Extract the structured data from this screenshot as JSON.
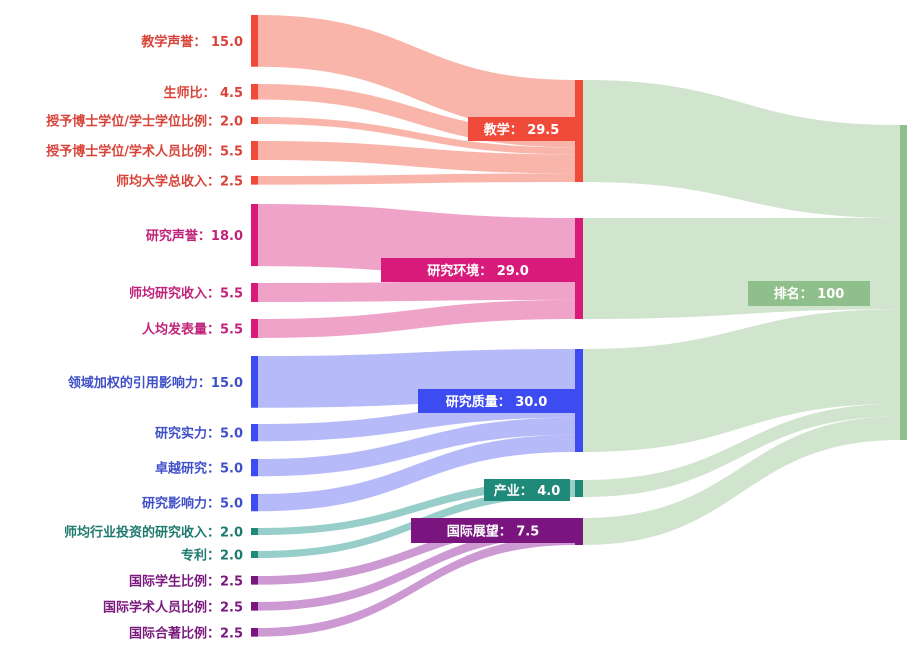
{
  "chart_data": {
    "type": "sankey",
    "colors": {
      "教学": {
        "node": "#f04a3a",
        "flow": "#f8a89a",
        "text": "#d8443a"
      },
      "研究环境": {
        "node": "#d81b7a",
        "flow": "#ec93c0",
        "text": "#c0237a"
      },
      "研究质量": {
        "node": "#3d4cf0",
        "flow": "#a9aef8",
        "text": "#3f4fc8"
      },
      "产业": {
        "node": "#1f8a7a",
        "flow": "#86c6bf",
        "text": "#1f7a6e"
      },
      "国际展望": {
        "node": "#7a1580",
        "flow": "#c487cb",
        "text": "#7a1a7e"
      },
      "排名": {
        "node": "#8fbf8a",
        "flow": "#c9dfc5",
        "text": "#ffffff"
      }
    },
    "sources": [
      {
        "name": "教学声誉",
        "value": 15.0,
        "label": "教学声誉： 15.0",
        "target": "教学"
      },
      {
        "name": "生师比",
        "value": 4.5,
        "label": "生师比： 4.5",
        "target": "教学"
      },
      {
        "name": "授予博士学位/学士学位比例",
        "value": 2.0,
        "label": "授予博士学位/学士学位比例：2.0",
        "target": "教学"
      },
      {
        "name": "授予博士学位/学术人员比例",
        "value": 5.5,
        "label": "授予博士学位/学术人员比例：5.5",
        "target": "教学"
      },
      {
        "name": "师均大学总收入",
        "value": 2.5,
        "label": "师均大学总收入：2.5",
        "target": "教学"
      },
      {
        "name": "研究声誉",
        "value": 18.0,
        "label": "研究声誉：18.0",
        "target": "研究环境"
      },
      {
        "name": "师均研究收入",
        "value": 5.5,
        "label": "师均研究收入：5.5",
        "target": "研究环境"
      },
      {
        "name": "人均发表量",
        "value": 5.5,
        "label": "人均发表量：5.5",
        "target": "研究环境"
      },
      {
        "name": "领域加权的引用影响力",
        "value": 15.0,
        "label": "领域加权的引用影响力：15.0",
        "target": "研究质量"
      },
      {
        "name": "研究实力",
        "value": 5.0,
        "label": "研究实力：5.0",
        "target": "研究质量"
      },
      {
        "name": "卓越研究",
        "value": 5.0,
        "label": "卓越研究：5.0",
        "target": "研究质量"
      },
      {
        "name": "研究影响力",
        "value": 5.0,
        "label": "研究影响力：5.0",
        "target": "研究质量"
      },
      {
        "name": "师均行业投资的研究收入",
        "value": 2.0,
        "label": "师均行业投资的研究收入：2.0",
        "target": "产业"
      },
      {
        "name": "专利",
        "value": 2.0,
        "label": "专利：2.0",
        "target": "产业"
      },
      {
        "name": "国际学生比例",
        "value": 2.5,
        "label": "国际学生比例：2.5",
        "target": "国际展望"
      },
      {
        "name": "国际学术人员比例",
        "value": 2.5,
        "label": "国际学术人员比例：2.5",
        "target": "国际展望"
      },
      {
        "name": "国际合著比例",
        "value": 2.5,
        "label": "国际合著比例：2.5",
        "target": "国际展望"
      }
    ],
    "categories": [
      {
        "name": "教学",
        "value": 29.5,
        "label": "教学： 29.5"
      },
      {
        "name": "研究环境",
        "value": 29.0,
        "label": "研究环境： 29.0"
      },
      {
        "name": "研究质量",
        "value": 30.0,
        "label": "研究质量： 30.0"
      },
      {
        "name": "产业",
        "value": 4.0,
        "label": "产业： 4.0"
      },
      {
        "name": "国际展望",
        "value": 7.5,
        "label": "国际展望： 7.5"
      }
    ],
    "total": {
      "name": "排名",
      "value": 100,
      "label": "排名： 100"
    }
  }
}
